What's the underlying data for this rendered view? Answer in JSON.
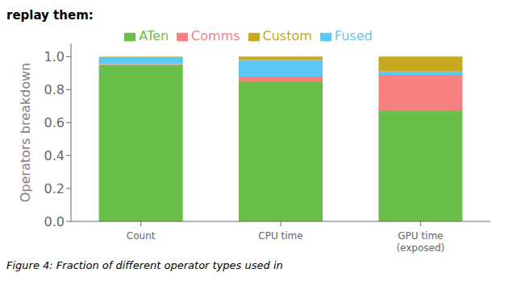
{
  "chart_data": {
    "type": "bar",
    "title": "replay them:",
    "annotations": [
      "Figure 4: Fraction of different operator types used in"
    ],
    "categories": [
      "Count",
      "CPU time",
      "GPU time\n(exposed)"
    ],
    "series": [
      {
        "name": "ATen",
        "color": "#6abf4b",
        "values": [
          0.95,
          0.85,
          0.67
        ]
      },
      {
        "name": "Comms",
        "color": "#f88080",
        "values": [
          0.005,
          0.03,
          0.22
        ]
      },
      {
        "name": "Fused",
        "color": "#5bc8f5",
        "values": [
          0.043,
          0.1,
          0.02
        ]
      },
      {
        "name": "Custom",
        "color": "#c8a820",
        "values": [
          0.002,
          0.02,
          0.09
        ]
      }
    ],
    "ylabel": "Operators breakdown",
    "ylim": [
      0.0,
      1.08
    ],
    "yticks": [
      {
        "value": 0,
        "label": "0.0"
      },
      0.2,
      0.4,
      0.6,
      0.8,
      {
        "value": 1,
        "label": "1.0"
      }
    ],
    "stacked": true,
    "legend": "top",
    "grid": false
  }
}
